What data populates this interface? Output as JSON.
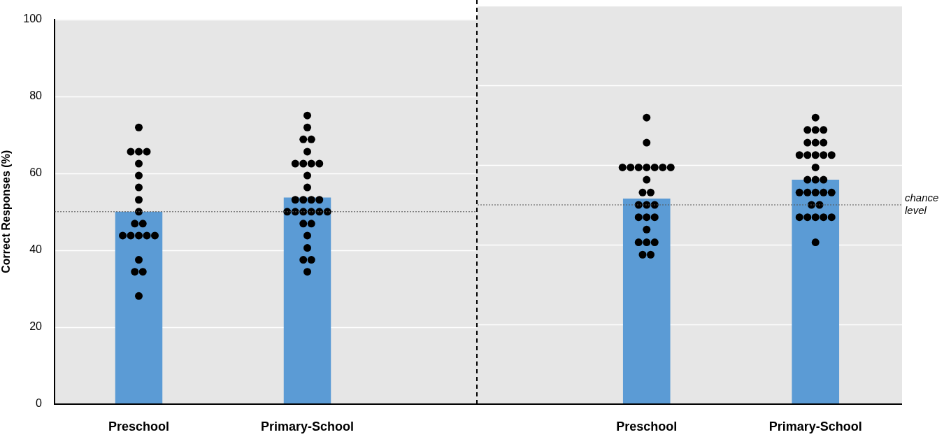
{
  "chart_data": [
    {
      "type": "bar",
      "categories": [
        "Preschool",
        "Primary-School"
      ],
      "values": [
        50,
        53.7
      ],
      "color": "#5b9bd5",
      "points": [
        [
          71.9,
          65.6,
          65.6,
          65.6,
          62.5,
          59.4,
          56.3,
          53.1,
          50,
          46.9,
          46.9,
          43.8,
          43.8,
          43.8,
          43.8,
          43.8,
          37.5,
          34.4,
          34.4,
          28.1
        ],
        [
          75,
          71.9,
          68.8,
          68.8,
          65.6,
          62.5,
          62.5,
          62.5,
          62.5,
          59.4,
          56.3,
          53.1,
          53.1,
          53.1,
          53.1,
          50,
          50,
          50,
          50,
          50,
          50,
          46.9,
          46.9,
          43.8,
          40.6,
          37.5,
          37.5,
          34.4
        ]
      ],
      "ylabel": "Correct Responses (%)",
      "ylim": [
        0,
        100
      ],
      "yticks": [
        0,
        20,
        40,
        60,
        80,
        100
      ],
      "grid": true,
      "annotations": [
        {
          "y": 50
        }
      ]
    },
    {
      "type": "bar",
      "categories": [
        "Preschool",
        "Primary-School"
      ],
      "values": [
        51.6,
        56.3
      ],
      "color": "#5b9bd5",
      "points": [
        [
          71.9,
          65.6,
          59.4,
          59.4,
          59.4,
          59.4,
          59.4,
          59.4,
          59.4,
          56.3,
          53.1,
          53.1,
          50,
          50,
          50,
          46.9,
          46.9,
          46.9,
          43.8,
          40.6,
          40.6,
          40.6,
          37.5,
          37.5
        ],
        [
          71.9,
          68.8,
          68.8,
          68.8,
          65.6,
          65.6,
          65.6,
          62.5,
          62.5,
          62.5,
          62.5,
          62.5,
          59.4,
          56.3,
          56.3,
          56.3,
          53.1,
          53.1,
          53.1,
          53.1,
          53.1,
          50,
          50,
          46.9,
          46.9,
          46.9,
          46.9,
          46.9,
          40.6
        ]
      ],
      "ylim": [
        0,
        100
      ],
      "yticks": [
        0,
        20,
        40,
        60,
        80,
        100
      ],
      "grid": true,
      "tick_labels": "x",
      "annotations": [
        {
          "y": 50,
          "label": "chance level"
        }
      ]
    }
  ]
}
